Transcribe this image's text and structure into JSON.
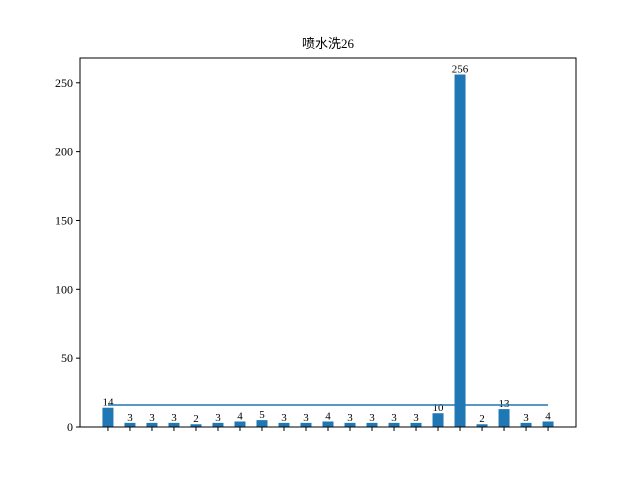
{
  "chart_data": {
    "type": "bar",
    "title": "喷水洗26",
    "categories": [
      null,
      null,
      null,
      null,
      null,
      null,
      null,
      null,
      null,
      null,
      null,
      null,
      null,
      null,
      null,
      null,
      null,
      null,
      null,
      null,
      null
    ],
    "values": [
      14,
      3,
      3,
      3,
      2,
      3,
      4,
      5,
      3,
      3,
      4,
      3,
      3,
      3,
      3,
      10,
      256,
      2,
      13,
      3,
      4
    ],
    "color": "#1f77b4",
    "mean_line": 16,
    "mean_line_color": "#1f77b4",
    "xlim": [
      -1.27,
      21.27
    ],
    "ylim": [
      0,
      268
    ],
    "yticks": [
      0,
      50,
      100,
      150,
      200,
      250
    ]
  }
}
